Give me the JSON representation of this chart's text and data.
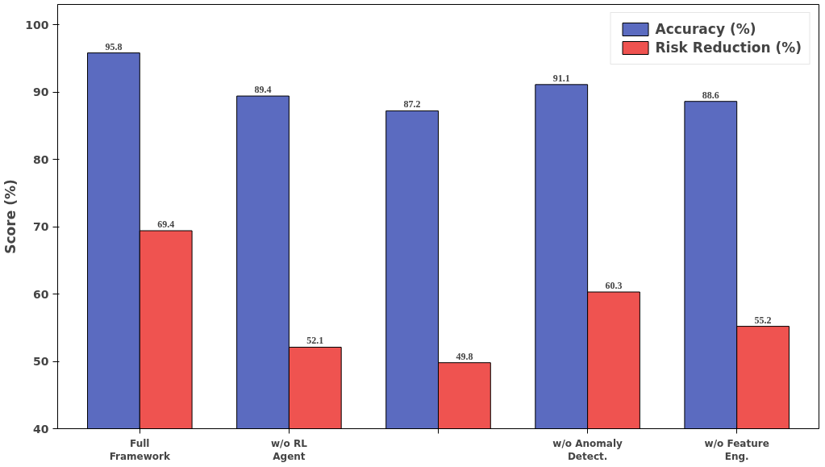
{
  "chart_data": {
    "type": "bar",
    "ylabel": "Score (%)",
    "categories": [
      "Full Framework",
      "w/o RL Agent",
      null,
      "w/o Anomaly Detect.",
      "w/o Feature Eng."
    ],
    "series": [
      {
        "name": "Accuracy (%)",
        "color": "#5b6bc0",
        "values": [
          95.8,
          89.4,
          87.2,
          91.1,
          88.6
        ]
      },
      {
        "name": "Risk Reduction (%)",
        "color": "#ef5350",
        "values": [
          69.4,
          52.1,
          49.8,
          60.3,
          55.2
        ]
      }
    ],
    "ylim": [
      40,
      103
    ],
    "yticks": [
      40,
      50,
      60,
      70,
      80,
      90,
      100
    ],
    "data_labels": true,
    "grid": false,
    "legend": "top right"
  }
}
